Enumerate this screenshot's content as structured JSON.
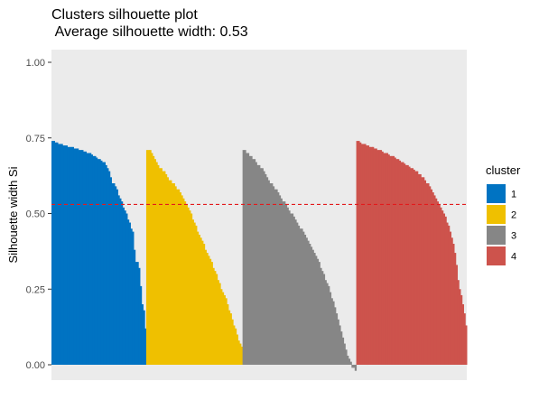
{
  "chart_data": {
    "type": "bar",
    "title": "Clusters silhouette plot",
    "subtitle": " Average silhouette width: 0.53",
    "xlabel": "",
    "ylabel": "Silhouette width Si",
    "ylim": [
      0,
      1
    ],
    "yticks": [
      "0.00",
      "0.25",
      "0.50",
      "0.75",
      "1.00"
    ],
    "average_silhouette_width": 0.53,
    "reference_line": {
      "y": 0.53,
      "style": "dashed",
      "color": "#E31A1C"
    },
    "grid": false,
    "legend": {
      "title": "cluster",
      "placement": "right"
    },
    "series": [
      {
        "name": "1",
        "color": "#0073C2",
        "values": [
          0.74,
          0.74,
          0.735,
          0.735,
          0.73,
          0.73,
          0.73,
          0.725,
          0.725,
          0.725,
          0.72,
          0.72,
          0.72,
          0.72,
          0.715,
          0.715,
          0.715,
          0.71,
          0.71,
          0.71,
          0.705,
          0.705,
          0.7,
          0.7,
          0.7,
          0.695,
          0.69,
          0.69,
          0.685,
          0.68,
          0.68,
          0.675,
          0.67,
          0.67,
          0.66,
          0.65,
          0.64,
          0.62,
          0.6,
          0.6,
          0.59,
          0.58,
          0.56,
          0.55,
          0.54,
          0.52,
          0.51,
          0.5,
          0.48,
          0.47,
          0.45,
          0.44,
          0.38,
          0.34,
          0.34,
          0.32,
          0.26,
          0.2,
          0.18,
          0.12
        ]
      },
      {
        "name": "2",
        "color": "#EFC000",
        "values": [
          0.71,
          0.71,
          0.71,
          0.7,
          0.69,
          0.68,
          0.67,
          0.66,
          0.65,
          0.65,
          0.64,
          0.64,
          0.63,
          0.62,
          0.61,
          0.61,
          0.6,
          0.6,
          0.59,
          0.58,
          0.58,
          0.57,
          0.56,
          0.55,
          0.54,
          0.53,
          0.52,
          0.51,
          0.5,
          0.48,
          0.47,
          0.46,
          0.44,
          0.43,
          0.42,
          0.41,
          0.4,
          0.38,
          0.37,
          0.36,
          0.35,
          0.34,
          0.32,
          0.31,
          0.3,
          0.28,
          0.27,
          0.25,
          0.24,
          0.23,
          0.22,
          0.2,
          0.18,
          0.17,
          0.15,
          0.13,
          0.12,
          0.1,
          0.08,
          0.07,
          0.06
        ]
      },
      {
        "name": "3",
        "color": "#868686",
        "values": [
          0.71,
          0.71,
          0.7,
          0.7,
          0.69,
          0.69,
          0.68,
          0.68,
          0.67,
          0.66,
          0.66,
          0.65,
          0.65,
          0.64,
          0.63,
          0.62,
          0.61,
          0.6,
          0.6,
          0.59,
          0.58,
          0.58,
          0.57,
          0.56,
          0.55,
          0.54,
          0.54,
          0.53,
          0.52,
          0.51,
          0.5,
          0.5,
          0.49,
          0.48,
          0.47,
          0.46,
          0.45,
          0.45,
          0.44,
          0.43,
          0.42,
          0.41,
          0.4,
          0.39,
          0.38,
          0.37,
          0.36,
          0.35,
          0.34,
          0.32,
          0.31,
          0.3,
          0.28,
          0.27,
          0.26,
          0.24,
          0.22,
          0.21,
          0.19,
          0.17,
          0.15,
          0.13,
          0.11,
          0.09,
          0.07,
          0.05,
          0.03,
          0.02,
          0.01,
          -0.01,
          -0.01,
          -0.02
        ]
      },
      {
        "name": "4",
        "color": "#CD534C",
        "values": [
          0.74,
          0.74,
          0.735,
          0.73,
          0.73,
          0.73,
          0.725,
          0.725,
          0.72,
          0.72,
          0.72,
          0.715,
          0.715,
          0.71,
          0.71,
          0.71,
          0.705,
          0.7,
          0.7,
          0.7,
          0.695,
          0.69,
          0.69,
          0.69,
          0.685,
          0.68,
          0.68,
          0.675,
          0.67,
          0.67,
          0.665,
          0.66,
          0.66,
          0.655,
          0.65,
          0.65,
          0.645,
          0.64,
          0.64,
          0.63,
          0.63,
          0.62,
          0.62,
          0.61,
          0.6,
          0.6,
          0.59,
          0.58,
          0.57,
          0.56,
          0.55,
          0.54,
          0.53,
          0.52,
          0.51,
          0.5,
          0.49,
          0.47,
          0.46,
          0.44,
          0.42,
          0.4,
          0.37,
          0.33,
          0.28,
          0.25,
          0.23,
          0.2,
          0.17,
          0.13
        ]
      }
    ]
  }
}
